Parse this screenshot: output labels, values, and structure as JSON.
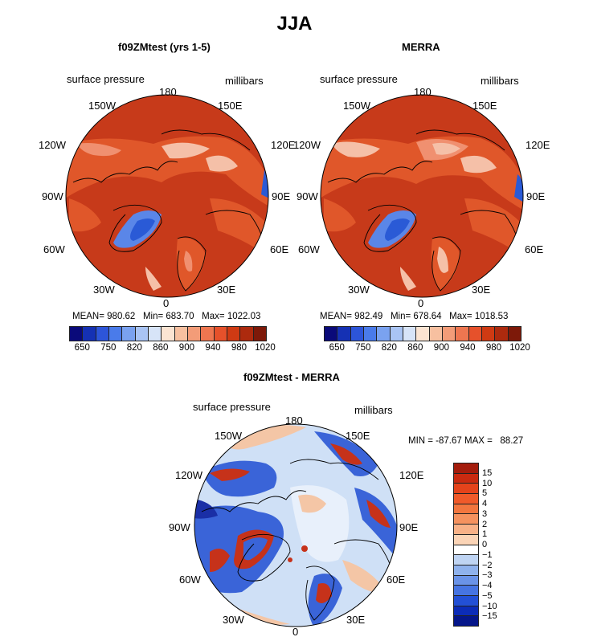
{
  "title": "JJA",
  "panels": [
    {
      "title": "f09ZMtest (yrs 1-5)",
      "variable": "surface pressure",
      "units": "millibars",
      "stats": {
        "mean_label": "MEAN=",
        "mean": "980.62",
        "min_label": "Min=",
        "min": "683.70",
        "max_label": "Max=",
        "max": "1022.03"
      }
    },
    {
      "title": "MERRA",
      "variable": "surface pressure",
      "units": "millibars",
      "stats": {
        "mean_label": "MEAN=",
        "mean": "982.49",
        "min_label": "Min=",
        "min": "678.64",
        "max_label": "Max=",
        "max": "1018.53"
      }
    },
    {
      "title": "f09ZMtest - MERRA",
      "variable": "surface pressure",
      "units": "millibars",
      "minmax": "MIN = -87.67 MAX =   88.27"
    }
  ],
  "longitudes": {
    "top": "180",
    "left_upper": "150W",
    "right_upper": "150E",
    "left_mid_upper": "120W",
    "right_mid_upper": "120E",
    "left": "90W",
    "right": "90E",
    "left_lower": "60W",
    "right_lower": "60E",
    "left_bottom": "30W",
    "right_bottom": "30E",
    "bottom": "0"
  },
  "abs_colorbar": {
    "tick_labels": [
      "650",
      "750",
      "820",
      "860",
      "900",
      "940",
      "980",
      "1020"
    ],
    "colors": [
      "#0a0a7a",
      "#1531b4",
      "#2d55d9",
      "#4a7bea",
      "#7aa2f0",
      "#a9c4f4",
      "#d7e4f8",
      "#fbe4d2",
      "#f7c0a0",
      "#f39c78",
      "#ee7650",
      "#e6512b",
      "#cf3a13",
      "#ad2a0e",
      "#7d1909"
    ]
  },
  "diff_colorbar": {
    "tick_labels": [
      "15",
      "10",
      "5",
      "4",
      "3",
      "2",
      "1",
      "0",
      "−1",
      "−2",
      "−3",
      "−4",
      "−5",
      "−10",
      "−15"
    ],
    "colors": [
      "#a41c0c",
      "#c92a10",
      "#e4431b",
      "#f05a2a",
      "#f2763f",
      "#f5925f",
      "#f8b187",
      "#fbd4b6",
      "#ffffff",
      "#bfd4f3",
      "#8fb2ed",
      "#6a93e8",
      "#4674e2",
      "#2350d6",
      "#0c2cb8",
      "#05168a"
    ]
  },
  "field_colors": {
    "base": "#c73a1a",
    "deep": "#9e2408",
    "mid": "#e0572a",
    "light": "#f09070",
    "pale": "#f5c0a8",
    "low_blue": "#2a5ad6",
    "low_blue2": "#5a86e8",
    "ice": "#cfe0f6"
  },
  "diff_colors": {
    "base": "#cfe0f6",
    "light": "#e8f0fb",
    "warm": "#f4c6a6",
    "blue": "#3a64d8",
    "red": "#c6321a",
    "deep_blue": "#1a2fa6"
  }
}
